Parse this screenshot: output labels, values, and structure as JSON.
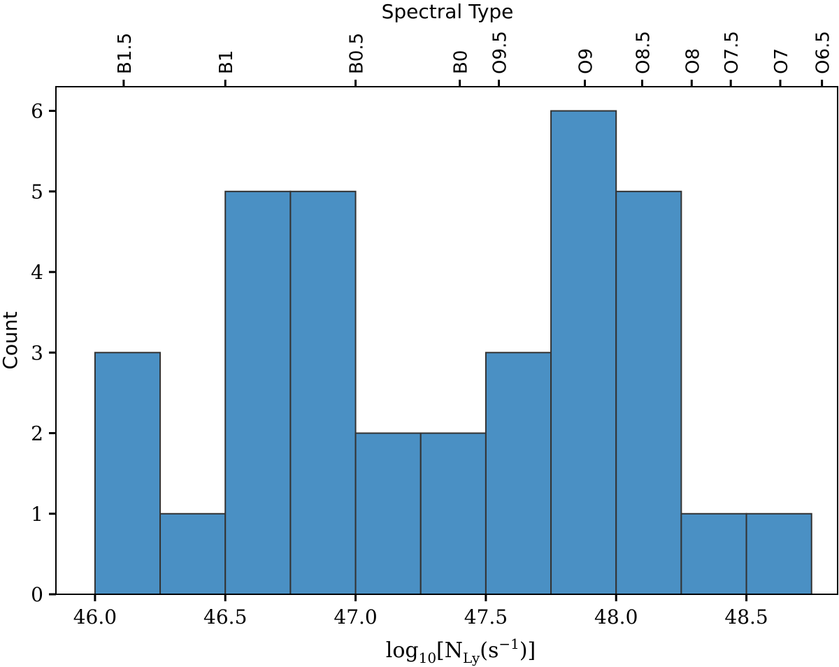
{
  "chart_data": {
    "type": "bar",
    "bin_edges": [
      46.0,
      46.25,
      46.5,
      46.75,
      47.0,
      47.25,
      47.5,
      47.75,
      48.0,
      48.25,
      48.5,
      48.75
    ],
    "values": [
      3,
      1,
      5,
      5,
      2,
      2,
      3,
      6,
      5,
      1,
      1
    ],
    "xlim": [
      45.85,
      48.85
    ],
    "ylim": [
      0,
      6.3
    ],
    "xticks": [
      46.0,
      46.5,
      47.0,
      47.5,
      48.0,
      48.5
    ],
    "xtick_labels": [
      "46.0",
      "46.5",
      "47.0",
      "47.5",
      "48.0",
      "48.5"
    ],
    "yticks": [
      0,
      1,
      2,
      3,
      4,
      5,
      6
    ],
    "ytick_labels": [
      "0",
      "1",
      "2",
      "3",
      "4",
      "5",
      "6"
    ],
    "xlabel": {
      "main": "log",
      "sub": "10",
      "bracket_open": "[N",
      "ly_sub": "Ly",
      "paren_open": "(s",
      "sup": "−1",
      "close": ")]"
    },
    "ylabel": "Count",
    "top_axis": {
      "label": "Spectral Type",
      "ticks": [
        {
          "value": 46.11,
          "label": "B1.5"
        },
        {
          "value": 46.5,
          "label": "B1"
        },
        {
          "value": 47.0,
          "label": "B0.5"
        },
        {
          "value": 47.4,
          "label": "B0"
        },
        {
          "value": 47.55,
          "label": "O9.5"
        },
        {
          "value": 47.88,
          "label": "O9"
        },
        {
          "value": 48.1,
          "label": "O8.5"
        },
        {
          "value": 48.29,
          "label": "O8"
        },
        {
          "value": 48.44,
          "label": "O7.5"
        },
        {
          "value": 48.63,
          "label": "O7"
        },
        {
          "value": 48.79,
          "label": "O6.5"
        }
      ]
    },
    "bar_color": "#4a90c4",
    "edge_color": "#333333",
    "grid": false
  }
}
